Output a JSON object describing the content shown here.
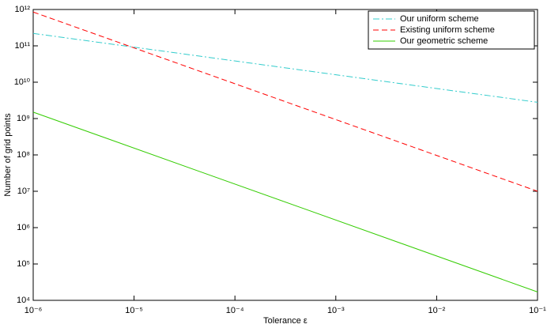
{
  "chart_data": {
    "type": "line",
    "xlabel": "Tolerance ε",
    "ylabel": "Number of grid points",
    "x": [
      1e-06,
      0.1
    ],
    "series": [
      {
        "name": "Our uniform scheme",
        "color": "#33cccc",
        "dash": "8,3,2,3",
        "values": [
          220000000000,
          2800000000
        ]
      },
      {
        "name": "Existing uniform scheme",
        "color": "#ff0000",
        "dash": "7,4",
        "values": [
          850000000000,
          10000000
        ]
      },
      {
        "name": "Our geometric scheme",
        "color": "#33cc00",
        "dash": "none",
        "values": [
          1500000000,
          17000
        ]
      }
    ],
    "xlog": true,
    "ylog": true,
    "xlim": [
      1e-06,
      0.1
    ],
    "ylim": [
      10000,
      1000000000000
    ],
    "xticks": [
      {
        "value": 1e-06,
        "label": "10⁻⁶"
      },
      {
        "value": 1e-05,
        "label": "10⁻⁵"
      },
      {
        "value": 0.0001,
        "label": "10⁻⁴"
      },
      {
        "value": 0.001,
        "label": "10⁻³"
      },
      {
        "value": 0.01,
        "label": "10⁻²"
      },
      {
        "value": 0.1,
        "label": "10⁻¹"
      }
    ],
    "yticks": [
      {
        "value": 10000,
        "label": "10⁴"
      },
      {
        "value": 100000,
        "label": "10⁵"
      },
      {
        "value": 1000000,
        "label": "10⁶"
      },
      {
        "value": 10000000,
        "label": "10⁷"
      },
      {
        "value": 100000000,
        "label": "10⁸"
      },
      {
        "value": 1000000000,
        "label": "10⁹"
      },
      {
        "value": 10000000000,
        "label": "10¹⁰"
      },
      {
        "value": 100000000000,
        "label": "10¹¹"
      },
      {
        "value": 1000000000000,
        "label": "10¹²"
      }
    ],
    "grid": false,
    "legend": "upper right"
  }
}
